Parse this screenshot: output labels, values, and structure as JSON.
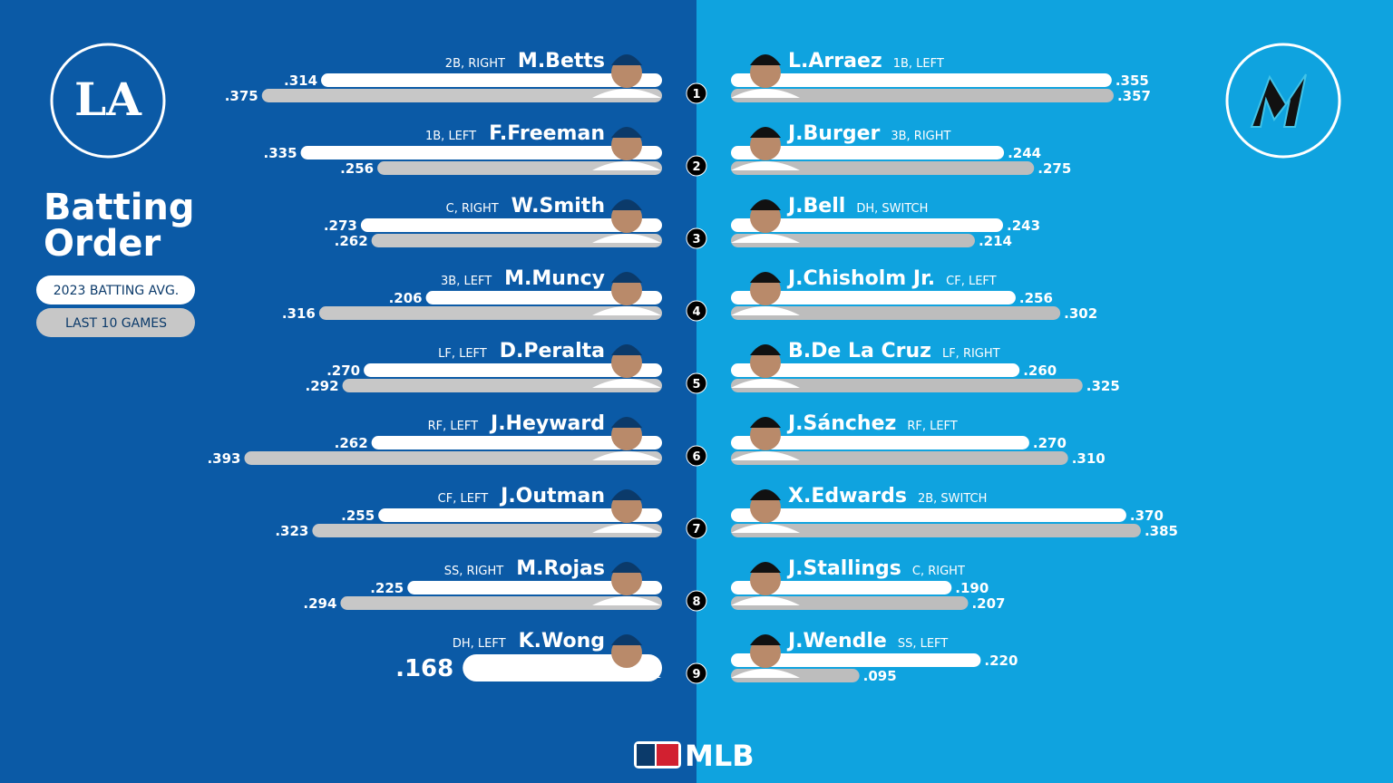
{
  "title": "Batting Order",
  "legend": {
    "season": "2023 BATTING AVG.",
    "last10": "LAST 10 GAMES"
  },
  "left_logo": "LA",
  "footer": "MLB",
  "order": [
    "1",
    "2",
    "3",
    "4",
    "5",
    "6",
    "7",
    "8",
    "9"
  ],
  "left_team": {
    "players": [
      {
        "name": "M.Betts",
        "position": "2B, RIGHT",
        "season": 0.314,
        "season_label": ".314",
        "last10": 0.375,
        "last10_label": ".375"
      },
      {
        "name": "F.Freeman",
        "position": "1B, LEFT",
        "season": 0.335,
        "season_label": ".335",
        "last10": 0.256,
        "last10_label": ".256"
      },
      {
        "name": "W.Smith",
        "position": "C, RIGHT",
        "season": 0.273,
        "season_label": ".273",
        "last10": 0.262,
        "last10_label": ".262"
      },
      {
        "name": "M.Muncy",
        "position": "3B, LEFT",
        "season": 0.206,
        "season_label": ".206",
        "last10": 0.316,
        "last10_label": ".316"
      },
      {
        "name": "D.Peralta",
        "position": "LF, LEFT",
        "season": 0.27,
        "season_label": ".270",
        "last10": 0.292,
        "last10_label": ".292"
      },
      {
        "name": "J.Heyward",
        "position": "RF, LEFT",
        "season": 0.262,
        "season_label": ".262",
        "last10": 0.393,
        "last10_label": ".393"
      },
      {
        "name": "J.Outman",
        "position": "CF, LEFT",
        "season": 0.255,
        "season_label": ".255",
        "last10": 0.323,
        "last10_label": ".323"
      },
      {
        "name": "M.Rojas",
        "position": "SS, RIGHT",
        "season": 0.225,
        "season_label": ".225",
        "last10": 0.294,
        "last10_label": ".294"
      },
      {
        "name": "K.Wong",
        "position": "DH, LEFT",
        "season": 0.168,
        "season_label": ".168"
      }
    ]
  },
  "right_team": {
    "players": [
      {
        "name": "L.Arraez",
        "position": "1B, LEFT",
        "season": 0.355,
        "season_label": ".355",
        "last10": 0.357,
        "last10_label": ".357"
      },
      {
        "name": "J.Burger",
        "position": "3B, RIGHT",
        "season": 0.244,
        "season_label": ".244",
        "last10": 0.275,
        "last10_label": ".275"
      },
      {
        "name": "J.Bell",
        "position": "DH, SWITCH",
        "season": 0.243,
        "season_label": ".243",
        "last10": 0.214,
        "last10_label": ".214"
      },
      {
        "name": "J.Chisholm Jr.",
        "position": "CF, LEFT",
        "season": 0.256,
        "season_label": ".256",
        "last10": 0.302,
        "last10_label": ".302"
      },
      {
        "name": "B.De La Cruz",
        "position": "LF, RIGHT",
        "season": 0.26,
        "season_label": ".260",
        "last10": 0.325,
        "last10_label": ".325"
      },
      {
        "name": "J.Sánchez",
        "position": "RF, LEFT",
        "season": 0.27,
        "season_label": ".270",
        "last10": 0.31,
        "last10_label": ".310"
      },
      {
        "name": "X.Edwards",
        "position": "2B, SWITCH",
        "season": 0.37,
        "season_label": ".370",
        "last10": 0.385,
        "last10_label": ".385"
      },
      {
        "name": "J.Stallings",
        "position": "C, RIGHT",
        "season": 0.19,
        "season_label": ".190",
        "last10": 0.207,
        "last10_label": ".207"
      },
      {
        "name": "J.Wendle",
        "position": "SS, LEFT",
        "season": 0.22,
        "season_label": ".220",
        "last10": 0.095,
        "last10_label": ".095"
      }
    ]
  }
}
